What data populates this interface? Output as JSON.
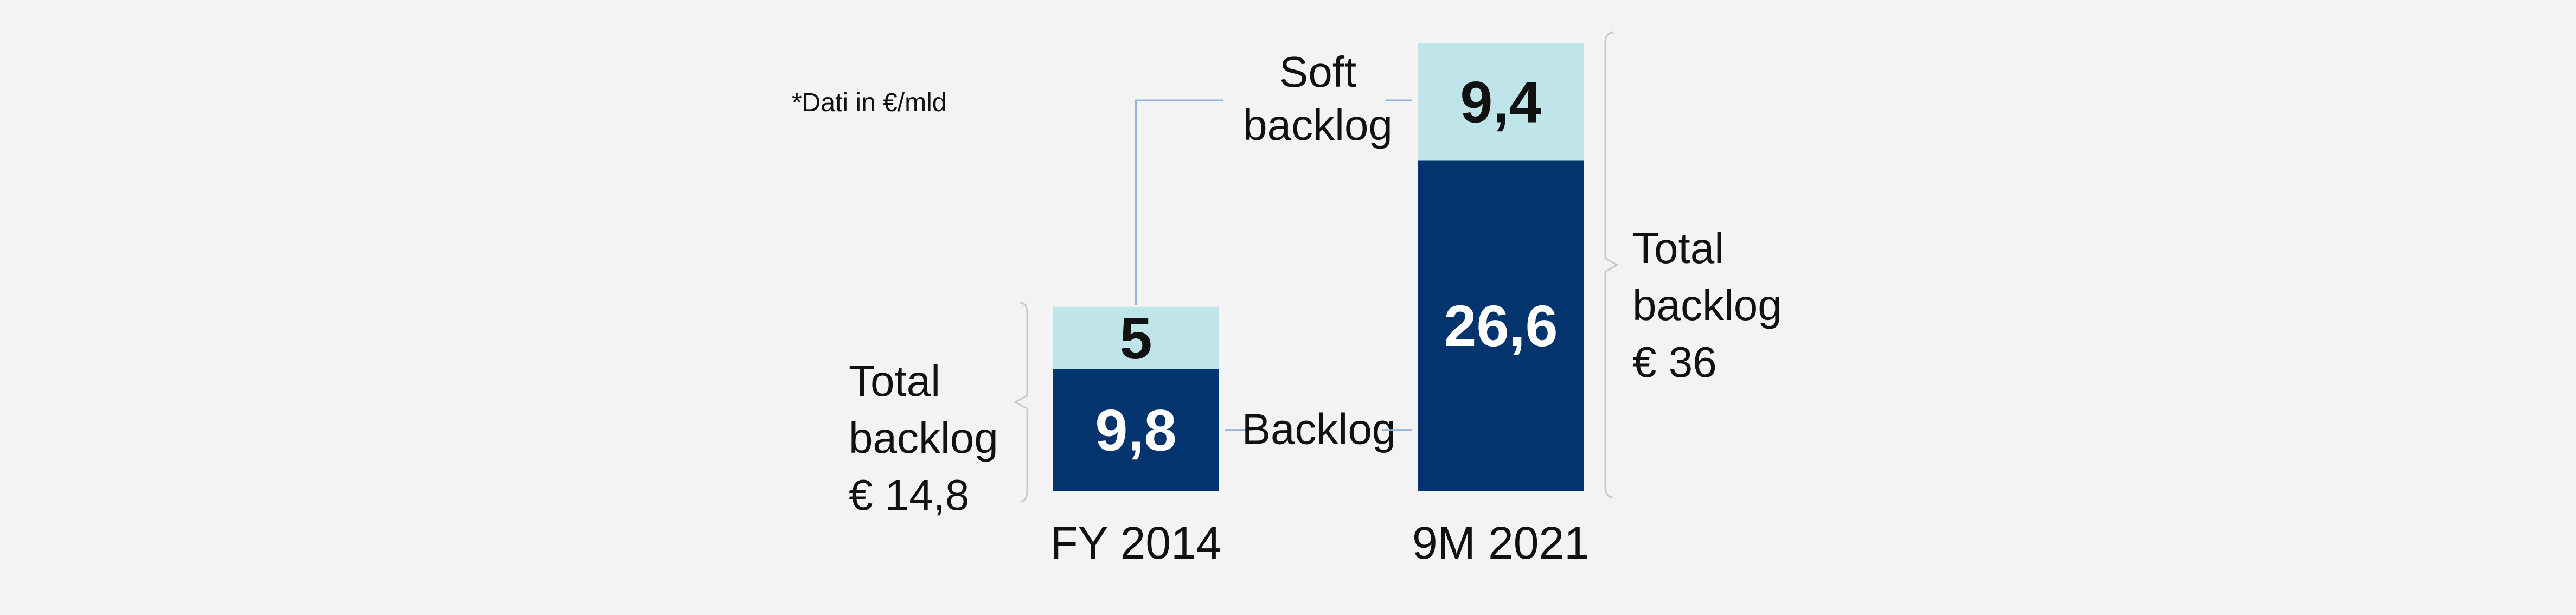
{
  "note": "*Dati in €/mld",
  "colors": {
    "backlog": "#03346e",
    "soft_backlog": "#bfe5ea",
    "leader": "#8fb4d6",
    "brace": "#c9c9c9"
  },
  "labels": {
    "soft": [
      "Soft",
      "backlog"
    ],
    "backlog": "Backlog"
  },
  "totals": [
    {
      "lines": [
        "Total",
        "backlog",
        "€ 14,8"
      ]
    },
    {
      "lines": [
        "Total",
        "backlog",
        "€ 36"
      ]
    }
  ],
  "chart_data": {
    "type": "bar",
    "stacked": true,
    "categories": [
      "FY 2014",
      "9M 2021"
    ],
    "series": [
      {
        "name": "Backlog",
        "values": [
          9.8,
          26.6
        ],
        "labels": [
          "9,8",
          "26,6"
        ]
      },
      {
        "name": "Soft backlog",
        "values": [
          5,
          9.4
        ],
        "labels": [
          "5",
          "9,4"
        ]
      }
    ],
    "totals": [
      14.8,
      36
    ],
    "ylim": [
      0,
      36
    ],
    "grid": false,
    "xlabel": "",
    "ylabel": ""
  }
}
